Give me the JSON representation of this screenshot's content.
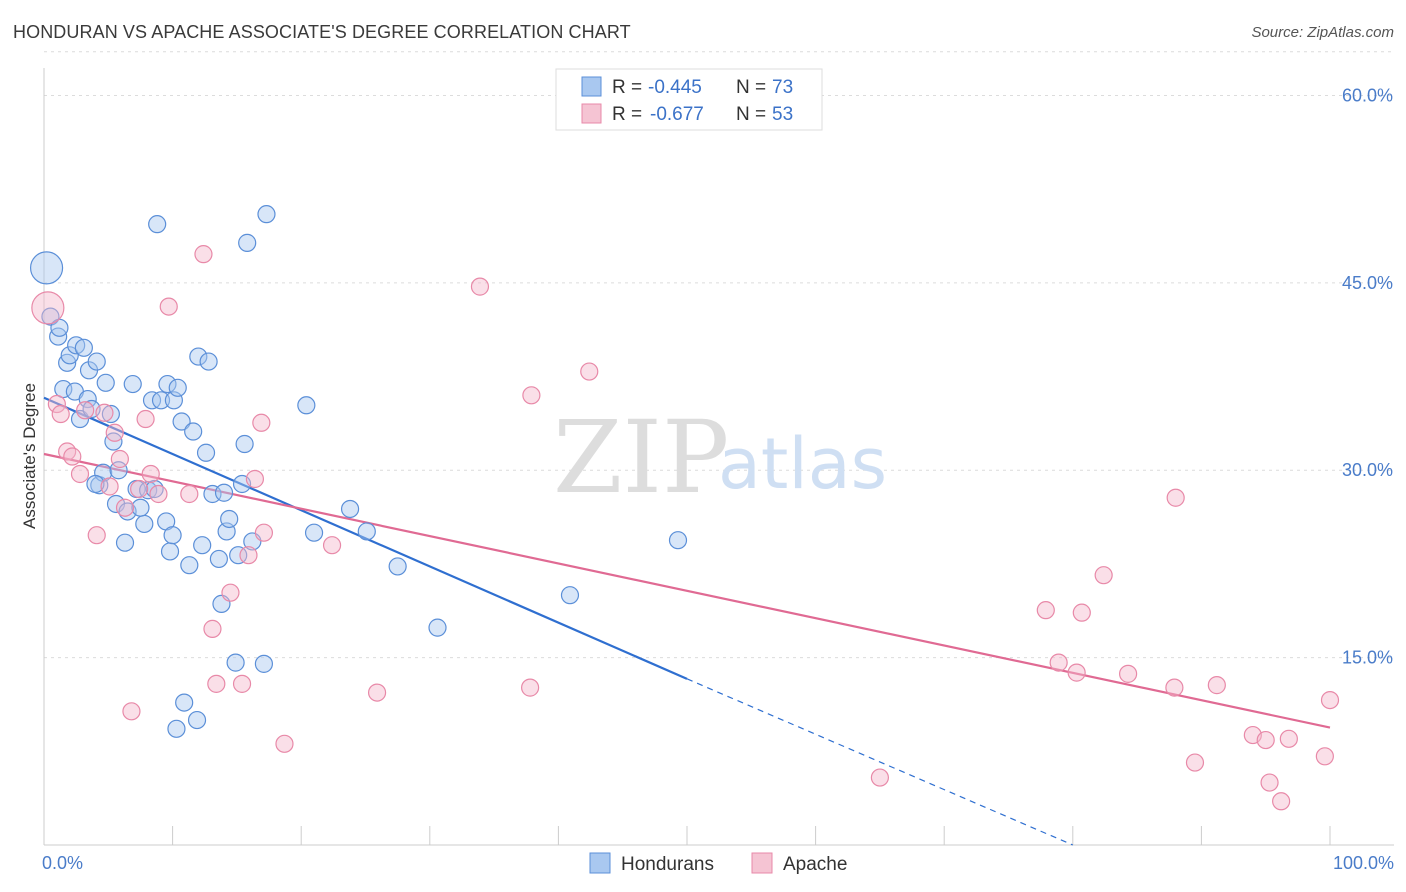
{
  "title": "HONDURAN VS APACHE ASSOCIATE'S DEGREE CORRELATION CHART",
  "source": "Source: ZipAtlas.com",
  "watermark": {
    "zip": "ZIP",
    "atlas": "atlas"
  },
  "colors": {
    "blue_fill": "#a9c8f0",
    "blue_stroke": "#5b8fd8",
    "blue_line": "#2f6fd0",
    "pink_fill": "#f5b8cb",
    "pink_stroke": "#e889a8",
    "pink_line": "#e06a93",
    "grid": "#dcdcdc",
    "axis": "#cccccc"
  },
  "legend": {
    "rows": [
      {
        "r_label": "R =",
        "r_value": "-0.445",
        "n_label": "N =",
        "n_value": "73"
      },
      {
        "r_label": "R =",
        "r_value": "-0.677",
        "n_label": "N =",
        "n_value": "53"
      }
    ]
  },
  "chart_data": {
    "type": "scatter",
    "title": "HONDURAN VS APACHE ASSOCIATE'S DEGREE CORRELATION CHART",
    "xlabel": "",
    "ylabel": "Associate's Degree",
    "xlim": [
      0,
      105
    ],
    "ylim": [
      0,
      63
    ],
    "x_tick_labels": [
      "0.0%",
      "100.0%"
    ],
    "y_ticks": [
      15,
      30,
      45,
      60
    ],
    "y_tick_labels": [
      "15.0%",
      "30.0%",
      "45.0%",
      "60.0%"
    ],
    "grid": true,
    "legend_placement": "top-center",
    "series": [
      {
        "name": "Hondurans",
        "color": "#5b8fd8",
        "r": -0.445,
        "n": 73,
        "trend": {
          "x0": 0,
          "y0": 35.8,
          "x1": 50,
          "y1": 13.3,
          "dash_to_x": 80,
          "dash_to_y": 0
        },
        "points": [
          [
            0.2,
            46.2,
            "big"
          ],
          [
            0.5,
            42.3
          ],
          [
            1.1,
            40.7
          ],
          [
            1.2,
            41.4
          ],
          [
            1.8,
            38.6
          ],
          [
            2.0,
            39.2
          ],
          [
            1.5,
            36.5
          ],
          [
            2.4,
            36.3
          ],
          [
            2.5,
            40.0
          ],
          [
            2.8,
            34.1
          ],
          [
            3.1,
            39.8
          ],
          [
            3.4,
            35.7
          ],
          [
            3.5,
            38.0
          ],
          [
            3.7,
            34.9
          ],
          [
            4.1,
            38.7
          ],
          [
            4.3,
            28.8
          ],
          [
            4.6,
            29.8
          ],
          [
            4.8,
            37.0
          ],
          [
            5.2,
            34.5
          ],
          [
            5.4,
            32.3
          ],
          [
            5.6,
            27.3
          ],
          [
            5.8,
            30.0
          ],
          [
            6.3,
            24.2
          ],
          [
            6.5,
            26.7
          ],
          [
            6.9,
            36.9
          ],
          [
            7.2,
            28.5
          ],
          [
            7.8,
            25.7
          ],
          [
            8.1,
            28.4
          ],
          [
            8.4,
            35.6
          ],
          [
            8.6,
            28.5
          ],
          [
            8.8,
            49.7
          ],
          [
            9.1,
            35.6
          ],
          [
            9.5,
            25.9
          ],
          [
            9.6,
            36.9
          ],
          [
            9.8,
            23.5
          ],
          [
            10.1,
            35.6
          ],
          [
            10.4,
            36.6
          ],
          [
            10.7,
            33.9
          ],
          [
            10.9,
            11.4
          ],
          [
            11.3,
            22.4
          ],
          [
            11.6,
            33.1
          ],
          [
            12.0,
            39.1
          ],
          [
            12.3,
            24.0
          ],
          [
            12.6,
            31.4
          ],
          [
            12.8,
            38.7
          ],
          [
            13.1,
            28.1
          ],
          [
            13.6,
            22.9
          ],
          [
            13.8,
            19.3
          ],
          [
            14.2,
            25.1
          ],
          [
            14.4,
            26.1
          ],
          [
            14.9,
            14.6
          ],
          [
            15.1,
            23.2
          ],
          [
            15.6,
            32.1
          ],
          [
            15.8,
            48.2
          ],
          [
            16.2,
            24.3
          ],
          [
            17.1,
            14.5
          ],
          [
            17.3,
            50.5
          ],
          [
            10.3,
            9.3
          ],
          [
            11.9,
            10.0
          ],
          [
            4.0,
            28.9
          ],
          [
            7.5,
            27.0
          ],
          [
            15.4,
            28.9
          ],
          [
            14.0,
            28.2
          ],
          [
            10.0,
            24.8
          ],
          [
            20.4,
            35.2
          ],
          [
            21.0,
            25.0
          ],
          [
            23.8,
            26.9
          ],
          [
            25.1,
            25.1
          ],
          [
            27.5,
            22.3
          ],
          [
            30.6,
            17.4
          ],
          [
            40.9,
            20.0
          ],
          [
            49.3,
            24.4
          ]
        ]
      },
      {
        "name": "Apache",
        "color": "#e889a8",
        "r": -0.677,
        "n": 53,
        "trend": {
          "x0": 0,
          "y0": 31.3,
          "x1": 100,
          "y1": 9.4
        },
        "points": [
          [
            0.3,
            43.0,
            "big"
          ],
          [
            1.0,
            35.3
          ],
          [
            1.3,
            34.5
          ],
          [
            1.8,
            31.5
          ],
          [
            2.2,
            31.1
          ],
          [
            2.8,
            29.7
          ],
          [
            3.2,
            34.8
          ],
          [
            4.1,
            24.8
          ],
          [
            4.7,
            34.6
          ],
          [
            5.1,
            28.7
          ],
          [
            5.5,
            33.0
          ],
          [
            5.9,
            30.9
          ],
          [
            6.3,
            27.0
          ],
          [
            6.8,
            10.7
          ],
          [
            7.4,
            28.5
          ],
          [
            7.9,
            34.1
          ],
          [
            8.3,
            29.7
          ],
          [
            8.9,
            28.1
          ],
          [
            9.7,
            43.1
          ],
          [
            11.3,
            28.1
          ],
          [
            12.4,
            47.3
          ],
          [
            13.1,
            17.3
          ],
          [
            13.4,
            12.9
          ],
          [
            14.5,
            20.2
          ],
          [
            15.4,
            12.9
          ],
          [
            15.9,
            23.2
          ],
          [
            16.4,
            29.3
          ],
          [
            16.9,
            33.8
          ],
          [
            17.1,
            25.0
          ],
          [
            18.7,
            8.1
          ],
          [
            22.4,
            24.0
          ],
          [
            25.9,
            12.2
          ],
          [
            33.9,
            44.7
          ],
          [
            37.8,
            12.6
          ],
          [
            37.9,
            36.0
          ],
          [
            42.4,
            37.9
          ],
          [
            65.0,
            5.4
          ],
          [
            77.9,
            18.8
          ],
          [
            78.9,
            14.6
          ],
          [
            80.3,
            13.8
          ],
          [
            80.7,
            18.6
          ],
          [
            82.4,
            21.6
          ],
          [
            84.3,
            13.7
          ],
          [
            87.9,
            12.6
          ],
          [
            88.0,
            27.8
          ],
          [
            89.5,
            6.6
          ],
          [
            91.2,
            12.8
          ],
          [
            94.0,
            8.8
          ],
          [
            95.0,
            8.4
          ],
          [
            95.3,
            5.0
          ],
          [
            96.8,
            8.5
          ],
          [
            99.6,
            7.1
          ],
          [
            100.0,
            11.6
          ],
          [
            96.2,
            3.5
          ]
        ]
      }
    ]
  }
}
